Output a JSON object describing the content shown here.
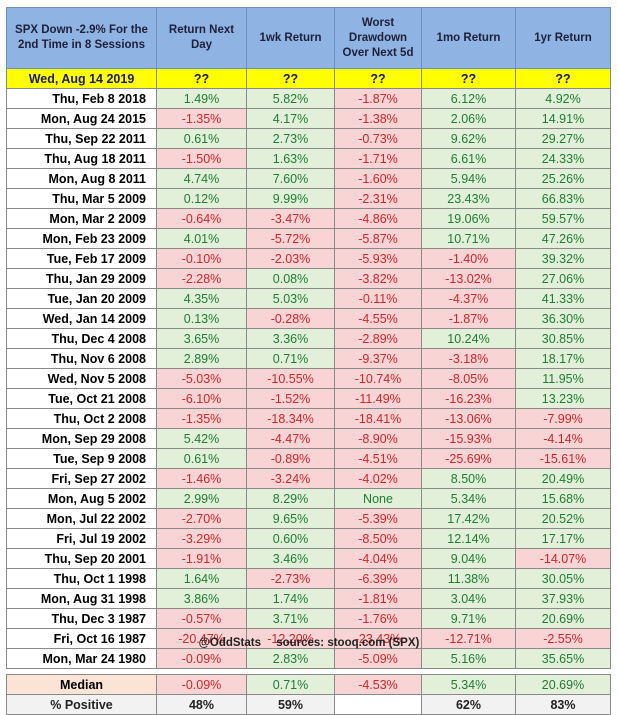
{
  "header": {
    "col0": "SPX Down -2.9% For the 2nd Time in 8 Sessions",
    "col1": "Return Next Day",
    "col2": "1wk Return",
    "col3": "Worst Drawdown Over Next 5d",
    "col4": "1mo Return",
    "col5": "1yr Return"
  },
  "today": {
    "date": "Wed, Aug 14 2019",
    "values": [
      "??",
      "??",
      "??",
      "??",
      "??"
    ]
  },
  "rows": [
    {
      "date": "Thu, Feb 8 2018",
      "values": [
        "1.49%",
        "5.82%",
        "-1.87%",
        "6.12%",
        "4.92%"
      ]
    },
    {
      "date": "Mon, Aug 24 2015",
      "values": [
        "-1.35%",
        "4.17%",
        "-1.38%",
        "2.06%",
        "14.91%"
      ]
    },
    {
      "date": "Thu, Sep 22 2011",
      "values": [
        "0.61%",
        "2.73%",
        "-0.73%",
        "9.62%",
        "29.27%"
      ]
    },
    {
      "date": "Thu, Aug 18 2011",
      "values": [
        "-1.50%",
        "1.63%",
        "-1.71%",
        "6.61%",
        "24.33%"
      ]
    },
    {
      "date": "Mon, Aug 8 2011",
      "values": [
        "4.74%",
        "7.60%",
        "-1.60%",
        "5.94%",
        "25.26%"
      ]
    },
    {
      "date": "Thu, Mar 5 2009",
      "values": [
        "0.12%",
        "9.99%",
        "-2.31%",
        "23.43%",
        "66.83%"
      ]
    },
    {
      "date": "Mon, Mar 2 2009",
      "values": [
        "-0.64%",
        "-3.47%",
        "-4.86%",
        "19.06%",
        "59.57%"
      ]
    },
    {
      "date": "Mon, Feb 23 2009",
      "values": [
        "4.01%",
        "-5.72%",
        "-5.87%",
        "10.71%",
        "47.26%"
      ]
    },
    {
      "date": "Tue, Feb 17 2009",
      "values": [
        "-0.10%",
        "-2.03%",
        "-5.93%",
        "-1.40%",
        "39.32%"
      ]
    },
    {
      "date": "Thu, Jan 29 2009",
      "values": [
        "-2.28%",
        "0.08%",
        "-3.82%",
        "-13.02%",
        "27.06%"
      ]
    },
    {
      "date": "Tue, Jan 20 2009",
      "values": [
        "4.35%",
        "5.03%",
        "-0.11%",
        "-4.37%",
        "41.33%"
      ]
    },
    {
      "date": "Wed, Jan 14 2009",
      "values": [
        "0.13%",
        "-0.28%",
        "-4.55%",
        "-1.87%",
        "36.30%"
      ]
    },
    {
      "date": "Thu, Dec 4 2008",
      "values": [
        "3.65%",
        "3.36%",
        "-2.89%",
        "10.24%",
        "30.85%"
      ]
    },
    {
      "date": "Thu, Nov 6 2008",
      "values": [
        "2.89%",
        "0.71%",
        "-9.37%",
        "-3.18%",
        "18.17%"
      ]
    },
    {
      "date": "Wed, Nov 5 2008",
      "values": [
        "-5.03%",
        "-10.55%",
        "-10.74%",
        "-8.05%",
        "11.95%"
      ]
    },
    {
      "date": "Tue, Oct 21 2008",
      "values": [
        "-6.10%",
        "-1.52%",
        "-11.49%",
        "-16.23%",
        "13.23%"
      ]
    },
    {
      "date": "Thu, Oct 2 2008",
      "values": [
        "-1.35%",
        "-18.34%",
        "-18.41%",
        "-13.06%",
        "-7.99%"
      ]
    },
    {
      "date": "Mon, Sep 29 2008",
      "values": [
        "5.42%",
        "-4.47%",
        "-8.90%",
        "-15.93%",
        "-4.14%"
      ]
    },
    {
      "date": "Tue, Sep 9 2008",
      "values": [
        "0.61%",
        "-0.89%",
        "-4.51%",
        "-25.69%",
        "-15.61%"
      ]
    },
    {
      "date": "Fri, Sep 27 2002",
      "values": [
        "-1.46%",
        "-3.24%",
        "-4.02%",
        "8.50%",
        "20.49%"
      ]
    },
    {
      "date": "Mon, Aug 5 2002",
      "values": [
        "2.99%",
        "8.29%",
        "None",
        "5.34%",
        "15.68%"
      ]
    },
    {
      "date": "Mon, Jul 22 2002",
      "values": [
        "-2.70%",
        "9.65%",
        "-5.39%",
        "17.42%",
        "20.52%"
      ]
    },
    {
      "date": "Fri, Jul 19 2002",
      "values": [
        "-3.29%",
        "0.60%",
        "-8.50%",
        "12.14%",
        "17.17%"
      ]
    },
    {
      "date": "Thu, Sep 20 2001",
      "values": [
        "-1.91%",
        "3.46%",
        "-4.04%",
        "9.04%",
        "-14.07%"
      ]
    },
    {
      "date": "Thu, Oct 1 1998",
      "values": [
        "1.64%",
        "-2.73%",
        "-6.39%",
        "11.38%",
        "30.05%"
      ]
    },
    {
      "date": "Mon, Aug 31 1998",
      "values": [
        "3.86%",
        "1.74%",
        "-1.81%",
        "3.04%",
        "37.93%"
      ]
    },
    {
      "date": "Thu, Dec 3 1987",
      "values": [
        "-0.57%",
        "3.71%",
        "-1.76%",
        "9.71%",
        "20.69%"
      ]
    },
    {
      "date": "Fri, Oct 16 1987",
      "values": [
        "-20.47%",
        "-12.20%",
        "-23.43%",
        "-12.71%",
        "-2.55%"
      ]
    },
    {
      "date": "Mon, Mar 24 1980",
      "values": [
        "-0.09%",
        "2.83%",
        "-5.09%",
        "5.16%",
        "35.65%"
      ]
    }
  ],
  "summary": {
    "label": "Median",
    "values": [
      "-0.09%",
      "0.71%",
      "-4.53%",
      "5.34%",
      "20.69%"
    ]
  },
  "positive": {
    "label": "% Positive",
    "values": [
      "48%",
      "59%",
      "",
      "62%",
      "83%"
    ]
  },
  "footer": {
    "handle": "@OddStats",
    "source": "sources: stooq.com (SPX)"
  },
  "colors": {
    "header_bg": "#8fb4e3",
    "today_bg": "#ffff00",
    "positive_bg": "#e2efd9",
    "positive_text": "#1e7d32",
    "negative_bg": "#f8d4d4",
    "negative_text": "#d0262c"
  }
}
